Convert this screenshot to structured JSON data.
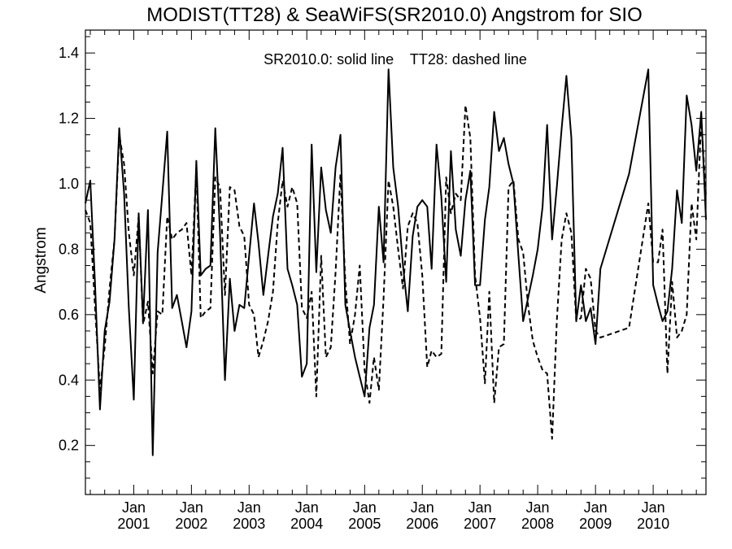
{
  "chart_data": {
    "type": "line",
    "title": "MODIST(TT28) & SeaWiFS(SR2010.0)  Angstrom for SIO",
    "ylabel": "Angstrom",
    "xlabel": "",
    "annotation": "SR2010.0: solid line    TT28: dashed line",
    "xlim": [
      "2000-03-01",
      "2010-12-01"
    ],
    "ylim": [
      0.05,
      1.47
    ],
    "yticks": [
      0.2,
      0.4,
      0.6,
      0.8,
      1.0,
      1.2,
      1.4
    ],
    "ytick_labels": [
      "0.2",
      "0.4",
      "0.6",
      "0.8",
      "1.0",
      "1.2",
      "1.4"
    ],
    "xticks": [
      {
        "date": "2001-01-01",
        "month": "Jan",
        "year": "2001"
      },
      {
        "date": "2002-01-01",
        "month": "Jan",
        "year": "2002"
      },
      {
        "date": "2003-01-01",
        "month": "Jan",
        "year": "2003"
      },
      {
        "date": "2004-01-01",
        "month": "Jan",
        "year": "2004"
      },
      {
        "date": "2005-01-01",
        "month": "Jan",
        "year": "2005"
      },
      {
        "date": "2006-01-01",
        "month": "Jan",
        "year": "2006"
      },
      {
        "date": "2007-01-01",
        "month": "Jan",
        "year": "2007"
      },
      {
        "date": "2008-01-01",
        "month": "Jan",
        "year": "2008"
      },
      {
        "date": "2009-01-01",
        "month": "Jan",
        "year": "2009"
      },
      {
        "date": "2010-01-01",
        "month": "Jan",
        "year": "2010"
      }
    ],
    "series": [
      {
        "name": "SR2010.0",
        "style": "solid",
        "color": "#000000",
        "points": [
          [
            "2000-03-01",
            0.94
          ],
          [
            "2000-04-01",
            1.01
          ],
          [
            "2000-05-01",
            0.69
          ],
          [
            "2000-06-01",
            0.31
          ],
          [
            "2000-07-01",
            0.55
          ],
          [
            "2000-08-01",
            0.64
          ],
          [
            "2000-09-01",
            0.83
          ],
          [
            "2000-10-01",
            1.17
          ],
          [
            "2000-11-01",
            0.97
          ],
          [
            "2000-12-01",
            0.62
          ],
          [
            "2001-01-01",
            0.34
          ],
          [
            "2001-02-01",
            0.91
          ],
          [
            "2001-03-01",
            0.58
          ],
          [
            "2001-04-01",
            0.92
          ],
          [
            "2001-05-01",
            0.17
          ],
          [
            "2001-06-01",
            0.79
          ],
          [
            "2001-07-01",
            0.97
          ],
          [
            "2001-08-01",
            1.16
          ],
          [
            "2001-09-01",
            0.62
          ],
          [
            "2001-10-01",
            0.66
          ],
          [
            "2001-11-01",
            0.58
          ],
          [
            "2001-12-01",
            0.5
          ],
          [
            "2002-01-01",
            0.61
          ],
          [
            "2002-02-01",
            1.07
          ],
          [
            "2002-03-01",
            0.72
          ],
          [
            "2002-04-01",
            0.74
          ],
          [
            "2002-05-01",
            0.75
          ],
          [
            "2002-06-01",
            1.17
          ],
          [
            "2002-07-01",
            0.85
          ],
          [
            "2002-08-01",
            0.4
          ],
          [
            "2002-09-01",
            0.71
          ],
          [
            "2002-10-01",
            0.55
          ],
          [
            "2002-11-01",
            0.63
          ],
          [
            "2002-12-01",
            0.62
          ],
          [
            "2003-01-01",
            0.78
          ],
          [
            "2003-02-01",
            0.94
          ],
          [
            "2003-03-01",
            0.82
          ],
          [
            "2003-04-01",
            0.66
          ],
          [
            "2003-05-01",
            0.78
          ],
          [
            "2003-06-01",
            0.9
          ],
          [
            "2003-07-01",
            0.97
          ],
          [
            "2003-08-01",
            1.11
          ],
          [
            "2003-09-01",
            0.74
          ],
          [
            "2003-10-01",
            0.69
          ],
          [
            "2003-11-01",
            0.63
          ],
          [
            "2003-12-01",
            0.41
          ],
          [
            "2004-01-01",
            0.45
          ],
          [
            "2004-02-01",
            1.12
          ],
          [
            "2004-03-01",
            0.73
          ],
          [
            "2004-04-01",
            1.05
          ],
          [
            "2004-05-01",
            0.92
          ],
          [
            "2004-06-01",
            0.85
          ],
          [
            "2004-07-01",
            1.05
          ],
          [
            "2004-08-01",
            1.15
          ],
          [
            "2004-09-01",
            0.63
          ],
          [
            "2004-10-01",
            0.55
          ],
          [
            "2004-11-01",
            0.47
          ],
          [
            "2004-12-01",
            0.41
          ],
          [
            "2005-01-01",
            0.35
          ],
          [
            "2005-02-01",
            0.56
          ],
          [
            "2005-03-01",
            0.63
          ],
          [
            "2005-04-01",
            0.93
          ],
          [
            "2005-05-01",
            0.76
          ],
          [
            "2005-06-01",
            1.35
          ],
          [
            "2005-07-01",
            1.05
          ],
          [
            "2005-08-01",
            0.93
          ],
          [
            "2005-09-01",
            0.75
          ],
          [
            "2005-10-01",
            0.61
          ],
          [
            "2005-11-01",
            0.84
          ],
          [
            "2005-12-01",
            0.93
          ],
          [
            "2006-01-01",
            0.95
          ],
          [
            "2006-02-01",
            0.93
          ],
          [
            "2006-03-01",
            0.74
          ],
          [
            "2006-04-01",
            1.12
          ],
          [
            "2006-05-01",
            0.96
          ],
          [
            "2006-06-01",
            0.7
          ],
          [
            "2006-07-01",
            1.1
          ],
          [
            "2006-08-01",
            0.86
          ],
          [
            "2006-09-01",
            0.78
          ],
          [
            "2006-10-01",
            0.95
          ],
          [
            "2006-11-01",
            1.04
          ],
          [
            "2006-12-01",
            0.69
          ],
          [
            "2007-01-01",
            0.69
          ],
          [
            "2007-02-01",
            0.89
          ],
          [
            "2007-03-01",
            0.99
          ],
          [
            "2007-04-01",
            1.22
          ],
          [
            "2007-05-01",
            1.1
          ],
          [
            "2007-06-01",
            1.14
          ],
          [
            "2007-07-01",
            1.06
          ],
          [
            "2007-08-01",
            1.0
          ],
          [
            "2007-09-01",
            0.78
          ],
          [
            "2007-10-01",
            0.58
          ],
          [
            "2007-11-01",
            0.65
          ],
          [
            "2007-12-01",
            0.72
          ],
          [
            "2008-01-01",
            0.8
          ],
          [
            "2008-02-01",
            0.93
          ],
          [
            "2008-03-01",
            1.18
          ],
          [
            "2008-04-01",
            0.83
          ],
          [
            "2008-05-01",
            0.99
          ],
          [
            "2008-06-01",
            1.17
          ],
          [
            "2008-07-01",
            1.33
          ],
          [
            "2008-08-01",
            1.14
          ],
          [
            "2008-09-01",
            0.58
          ],
          [
            "2008-10-01",
            0.69
          ],
          [
            "2008-11-01",
            0.58
          ],
          [
            "2008-12-01",
            0.62
          ],
          [
            "2009-01-01",
            0.51
          ],
          [
            "2009-02-01",
            0.74
          ],
          [
            "2009-08-01",
            1.03
          ],
          [
            "2009-12-01",
            1.35
          ],
          [
            "2010-01-01",
            0.69
          ],
          [
            "2010-02-01",
            0.63
          ],
          [
            "2010-03-01",
            0.58
          ],
          [
            "2010-04-01",
            0.61
          ],
          [
            "2010-05-01",
            0.74
          ],
          [
            "2010-06-01",
            0.98
          ],
          [
            "2010-07-01",
            0.88
          ],
          [
            "2010-08-01",
            1.27
          ],
          [
            "2010-09-01",
            1.18
          ],
          [
            "2010-10-01",
            1.04
          ],
          [
            "2010-11-01",
            1.22
          ],
          [
            "2010-12-01",
            0.89
          ]
        ]
      },
      {
        "name": "TT28",
        "style": "dashed",
        "color": "#000000",
        "points": [
          [
            "2000-03-01",
            0.92
          ],
          [
            "2000-04-01",
            0.88
          ],
          [
            "2000-05-01",
            0.62
          ],
          [
            "2000-06-01",
            0.37
          ],
          [
            "2000-07-01",
            0.5
          ],
          [
            "2000-08-01",
            0.68
          ],
          [
            "2000-09-01",
            0.83
          ],
          [
            "2000-10-01",
            1.15
          ],
          [
            "2000-11-01",
            1.06
          ],
          [
            "2000-12-01",
            0.85
          ],
          [
            "2001-01-01",
            0.72
          ],
          [
            "2001-02-01",
            0.9
          ],
          [
            "2001-03-01",
            0.57
          ],
          [
            "2001-04-01",
            0.64
          ],
          [
            "2001-05-01",
            0.42
          ],
          [
            "2001-06-01",
            0.61
          ],
          [
            "2001-07-01",
            0.6
          ],
          [
            "2001-08-01",
            0.9
          ],
          [
            "2001-09-01",
            0.83
          ],
          [
            "2001-10-01",
            0.85
          ],
          [
            "2001-11-01",
            0.86
          ],
          [
            "2001-12-01",
            0.88
          ],
          [
            "2002-01-01",
            0.72
          ],
          [
            "2002-02-01",
            1.05
          ],
          [
            "2002-03-01",
            0.59
          ],
          [
            "2002-04-01",
            0.61
          ],
          [
            "2002-05-01",
            0.62
          ],
          [
            "2002-06-01",
            1.02
          ],
          [
            "2002-07-01",
            0.99
          ],
          [
            "2002-08-01",
            0.66
          ],
          [
            "2002-09-01",
            0.99
          ],
          [
            "2002-10-01",
            0.98
          ],
          [
            "2002-11-01",
            0.87
          ],
          [
            "2002-12-01",
            0.84
          ],
          [
            "2003-01-01",
            0.63
          ],
          [
            "2003-02-01",
            0.6
          ],
          [
            "2003-03-01",
            0.47
          ],
          [
            "2003-04-01",
            0.52
          ],
          [
            "2003-05-01",
            0.58
          ],
          [
            "2003-06-01",
            0.67
          ],
          [
            "2003-07-01",
            0.88
          ],
          [
            "2003-08-01",
            1.01
          ],
          [
            "2003-09-01",
            0.93
          ],
          [
            "2003-10-01",
            0.99
          ],
          [
            "2003-11-01",
            0.94
          ],
          [
            "2003-12-01",
            0.62
          ],
          [
            "2004-01-01",
            0.59
          ],
          [
            "2004-02-01",
            0.67
          ],
          [
            "2004-03-01",
            0.35
          ],
          [
            "2004-04-01",
            0.78
          ],
          [
            "2004-05-01",
            0.47
          ],
          [
            "2004-06-01",
            0.5
          ],
          [
            "2004-07-01",
            0.73
          ],
          [
            "2004-08-01",
            1.03
          ],
          [
            "2004-09-01",
            0.7
          ],
          [
            "2004-10-01",
            0.51
          ],
          [
            "2004-11-01",
            0.6
          ],
          [
            "2004-12-01",
            0.75
          ],
          [
            "2005-01-01",
            0.43
          ],
          [
            "2005-02-01",
            0.33
          ],
          [
            "2005-03-01",
            0.47
          ],
          [
            "2005-04-01",
            0.37
          ],
          [
            "2005-05-01",
            0.65
          ],
          [
            "2005-06-01",
            1.01
          ],
          [
            "2005-07-01",
            0.93
          ],
          [
            "2005-08-01",
            0.8
          ],
          [
            "2005-09-01",
            0.68
          ],
          [
            "2005-10-01",
            0.87
          ],
          [
            "2005-11-01",
            0.91
          ],
          [
            "2005-12-01",
            0.88
          ],
          [
            "2006-01-01",
            0.72
          ],
          [
            "2006-02-01",
            0.44
          ],
          [
            "2006-03-01",
            0.49
          ],
          [
            "2006-04-01",
            0.47
          ],
          [
            "2006-05-01",
            0.48
          ],
          [
            "2006-06-01",
            1.02
          ],
          [
            "2006-07-01",
            0.91
          ],
          [
            "2006-08-01",
            0.97
          ],
          [
            "2006-09-01",
            0.95
          ],
          [
            "2006-10-01",
            1.24
          ],
          [
            "2006-11-01",
            1.14
          ],
          [
            "2006-12-01",
            0.72
          ],
          [
            "2007-01-01",
            0.59
          ],
          [
            "2007-02-01",
            0.39
          ],
          [
            "2007-03-01",
            0.67
          ],
          [
            "2007-04-01",
            0.33
          ],
          [
            "2007-05-01",
            0.5
          ],
          [
            "2007-06-01",
            0.51
          ],
          [
            "2007-07-01",
            0.99
          ],
          [
            "2007-08-01",
            1.01
          ],
          [
            "2007-09-01",
            0.83
          ],
          [
            "2007-10-01",
            0.79
          ],
          [
            "2007-11-01",
            0.63
          ],
          [
            "2007-12-01",
            0.52
          ],
          [
            "2008-01-01",
            0.47
          ],
          [
            "2008-02-01",
            0.43
          ],
          [
            "2008-03-01",
            0.42
          ],
          [
            "2008-04-01",
            0.22
          ],
          [
            "2008-05-01",
            0.58
          ],
          [
            "2008-06-01",
            0.83
          ],
          [
            "2008-07-01",
            0.91
          ],
          [
            "2008-08-01",
            0.85
          ],
          [
            "2008-09-01",
            0.58
          ],
          [
            "2008-10-01",
            0.59
          ],
          [
            "2008-11-01",
            0.74
          ],
          [
            "2008-12-01",
            0.71
          ],
          [
            "2009-01-01",
            0.55
          ],
          [
            "2009-02-01",
            0.53
          ],
          [
            "2009-08-01",
            0.56
          ],
          [
            "2009-12-01",
            0.94
          ],
          [
            "2010-01-01",
            0.76
          ],
          [
            "2010-02-01",
            0.76
          ],
          [
            "2010-03-01",
            0.86
          ],
          [
            "2010-04-01",
            0.42
          ],
          [
            "2010-05-01",
            0.7
          ],
          [
            "2010-06-01",
            0.53
          ],
          [
            "2010-07-01",
            0.55
          ],
          [
            "2010-08-01",
            0.6
          ],
          [
            "2010-09-01",
            0.94
          ],
          [
            "2010-10-01",
            0.83
          ],
          [
            "2010-11-01",
            1.2
          ],
          [
            "2010-12-01",
            0.96
          ]
        ]
      }
    ]
  }
}
